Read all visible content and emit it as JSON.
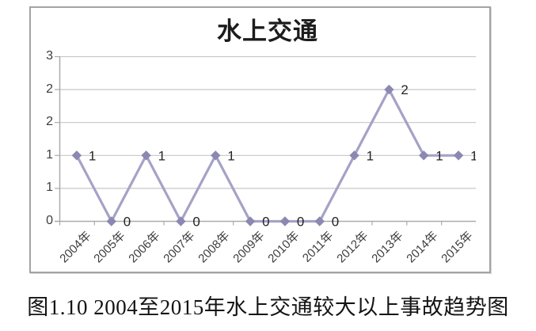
{
  "chart_data": {
    "type": "line",
    "title": "水上交通",
    "categories": [
      "2004年",
      "2005年",
      "2006年",
      "2007年",
      "2008年",
      "2009年",
      "2010年",
      "2011年",
      "2012年",
      "2013年",
      "2014年",
      "2015年"
    ],
    "series": [
      {
        "name": "水上交通",
        "values": [
          1,
          0,
          1,
          0,
          1,
          0,
          0,
          0,
          1,
          2,
          1,
          1
        ]
      }
    ],
    "data_labels": [
      "1",
      "0",
      "1",
      "0",
      "1",
      "0",
      "0",
      "0",
      "1",
      "2",
      "1",
      "1"
    ],
    "xlabel": "",
    "ylabel": "",
    "ylim": [
      0,
      2.5
    ],
    "y_axis": {
      "tick_interval": 0.5,
      "tick_labels_top_to_bottom": [
        "3",
        "2",
        "2",
        "1",
        "1",
        "0"
      ]
    },
    "grid": true,
    "legend": "none",
    "marker": "diamond",
    "colors": {
      "line": "#a5a2c6",
      "marker": "#8b88b2",
      "gridline": "#c7c7c7",
      "axis": "#ababab",
      "axis_text": "#3d3d3d",
      "data_label_text": "#242424",
      "panel_border": "#a3a3a3",
      "title_text": "#1c1c1c"
    }
  },
  "caption": "图1.10 2004至2015年水上交通较大以上事故趋势图"
}
